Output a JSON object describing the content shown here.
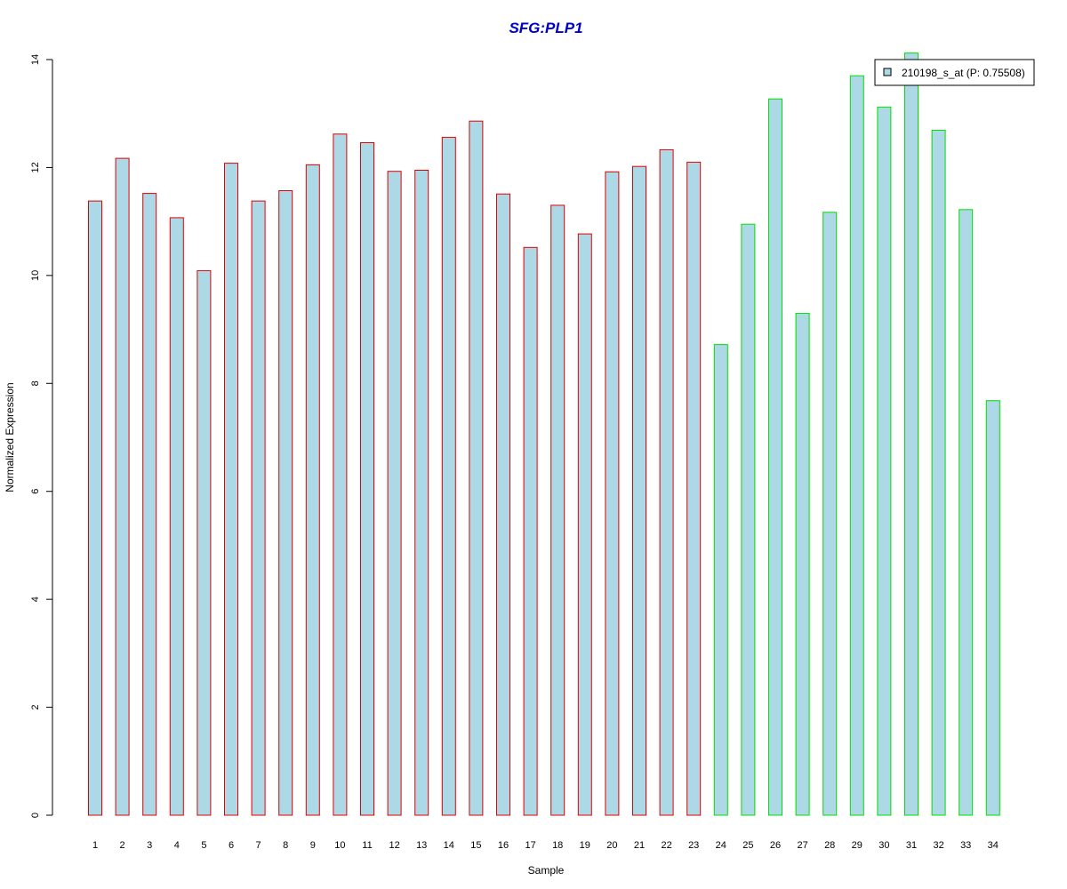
{
  "chart_data": {
    "type": "bar",
    "title": "SFG:PLP1",
    "xlabel": "Sample",
    "ylabel": "Normalized Expression",
    "ylim": [
      0,
      14
    ],
    "yticks": [
      "0",
      "2",
      "4",
      "6",
      "8",
      "10",
      "12",
      "14"
    ],
    "categories": [
      "1",
      "2",
      "3",
      "4",
      "5",
      "6",
      "7",
      "8",
      "9",
      "10",
      "11",
      "12",
      "13",
      "14",
      "15",
      "16",
      "17",
      "18",
      "19",
      "20",
      "21",
      "22",
      "23",
      "24",
      "25",
      "26",
      "27",
      "28",
      "29",
      "30",
      "31",
      "32",
      "33",
      "34"
    ],
    "series": [
      {
        "name": "210198_s_at (P: 0.75508)",
        "values": [
          11.38,
          12.17,
          11.52,
          11.07,
          10.09,
          12.08,
          11.38,
          11.57,
          12.05,
          12.62,
          12.46,
          11.93,
          11.95,
          12.56,
          12.86,
          11.51,
          10.52,
          11.3,
          10.77,
          11.92,
          12.02,
          12.33,
          12.1,
          8.72,
          10.95,
          13.27,
          9.3,
          11.17,
          13.7,
          13.12,
          14.12,
          12.69,
          11.22,
          7.68
        ]
      }
    ],
    "groups": [
      {
        "from": 1,
        "to": 23,
        "border_color": "#e00000"
      },
      {
        "from": 24,
        "to": 34,
        "border_color": "#00e000"
      }
    ],
    "bar_fill": "#add8e6",
    "title_color": "#0000cc",
    "grid": false,
    "legend": {
      "placement": "top-right",
      "label": "210198_s_at (P: 0.75508)"
    }
  }
}
